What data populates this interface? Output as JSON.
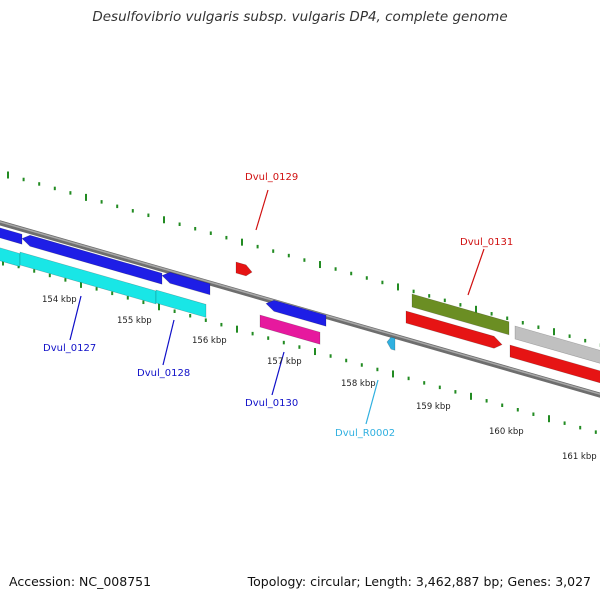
{
  "title": "Desulfovibrio vulgaris subsp. vulgaris DP4, complete genome",
  "footer": {
    "accession": "Accession: NC_008751",
    "topology": "Topology: circular; Length: 3,462,887 bp; Genes: 3,027"
  },
  "colors": {
    "backbone": "#808080",
    "tick": "#228b22",
    "blue_gene": "#1e1ee6",
    "cyan_gene": "#19e6e6",
    "red_gene": "#e61414",
    "magenta_gene": "#e6199e",
    "olive_gene": "#6b8e23",
    "gray_gene": "#c0c0c0",
    "rna_gene": "#30b0e0",
    "label_blue": "#1010c8",
    "label_red": "#d01010",
    "label_cyan": "#30b0e0"
  },
  "scale_labels": [
    "154 kbp",
    "155 kbp",
    "156 kbp",
    "157 kbp",
    "158 kbp",
    "159 kbp",
    "160 kbp",
    "161 kbp"
  ],
  "gene_labels": [
    {
      "name": "Dvul_0127",
      "color": "#1010c8"
    },
    {
      "name": "Dvul_0128",
      "color": "#1010c8"
    },
    {
      "name": "Dvul_0129",
      "color": "#d01010"
    },
    {
      "name": "Dvul_0130",
      "color": "#1010c8"
    },
    {
      "name": "Dvul_R0002",
      "color": "#30b0e0"
    },
    {
      "name": "Dvul_0131",
      "color": "#d01010"
    }
  ]
}
